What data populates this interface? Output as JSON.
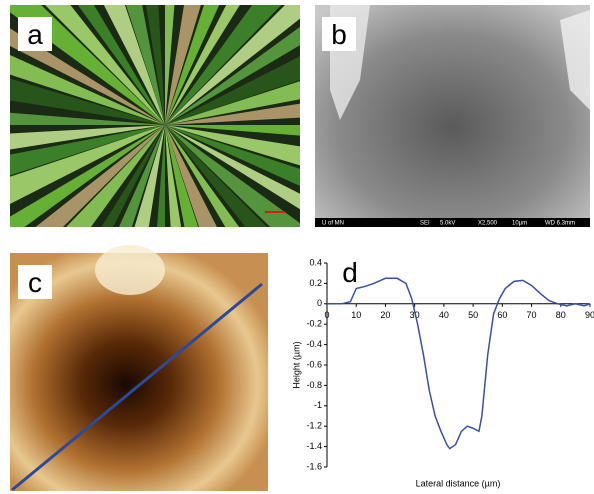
{
  "panels": {
    "a": {
      "label": "a"
    },
    "b": {
      "label": "b",
      "scale_bar": [
        "U of MN",
        "SEI",
        "5.0kV",
        "X2,500",
        "10µm",
        "WD 6.3mm"
      ]
    },
    "c": {
      "label": "c"
    }
  },
  "chart_data": {
    "type": "line",
    "label": "d",
    "x_label": "Lateral distance (µm)",
    "y_label": "Height (µm)",
    "x": [
      0,
      5,
      8,
      10,
      13,
      16,
      20,
      24,
      27,
      29,
      31,
      33,
      35,
      37,
      39,
      41,
      42,
      44,
      46,
      48,
      50,
      52,
      53,
      55,
      57,
      59,
      61,
      64,
      67,
      70,
      73,
      76,
      79,
      82,
      85,
      88,
      90
    ],
    "series": [
      {
        "color": "#3a4fa0",
        "values": [
          0,
          0,
          0.02,
          0.15,
          0.17,
          0.2,
          0.25,
          0.25,
          0.2,
          0.05,
          -0.2,
          -0.5,
          -0.85,
          -1.1,
          -1.25,
          -1.38,
          -1.42,
          -1.38,
          -1.25,
          -1.2,
          -1.22,
          -1.25,
          -1.1,
          -0.5,
          -0.1,
          0.05,
          0.15,
          0.22,
          0.23,
          0.18,
          0.1,
          0.03,
          0,
          -0.02,
          0,
          -0.02,
          0
        ]
      }
    ],
    "xlim": [
      0,
      90
    ],
    "ylim": [
      -1.6,
      0.4
    ],
    "xticks": [
      0,
      10,
      20,
      30,
      40,
      50,
      60,
      70,
      80,
      90
    ],
    "yticks": [
      0.4,
      0.2,
      0,
      -0.2,
      -0.4,
      -0.6,
      -0.8,
      -1,
      -1.2,
      -1.4,
      -1.6
    ]
  }
}
